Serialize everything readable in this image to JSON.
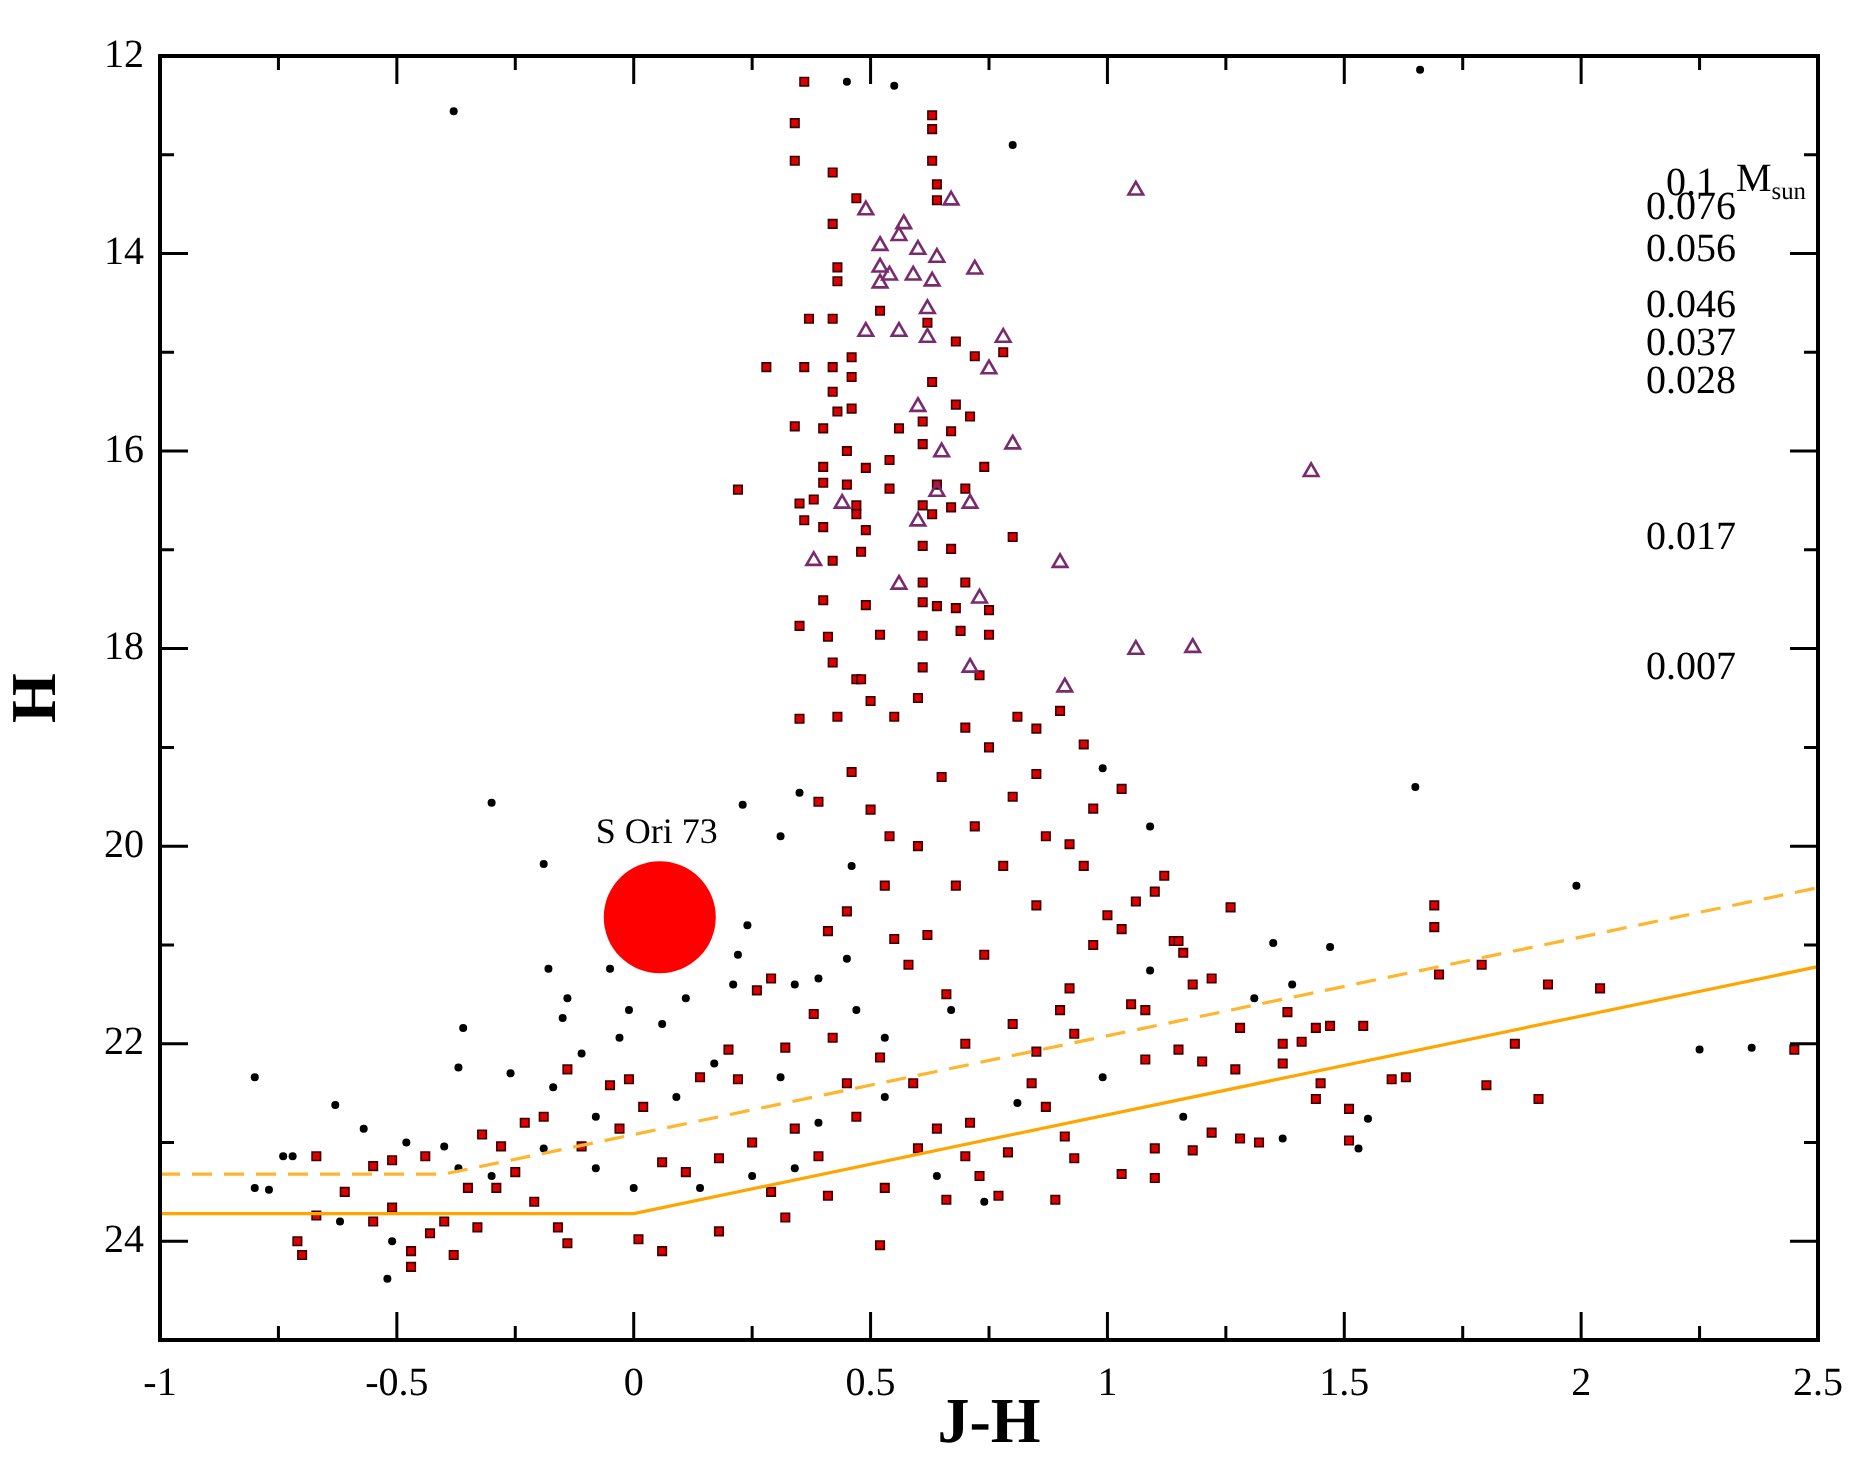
{
  "chart_data": {
    "type": "scatter",
    "xlabel": "J-H",
    "ylabel": "H",
    "xlim": [
      -1,
      2.5
    ],
    "ylim": [
      25,
      12
    ],
    "xticks": [
      -1,
      -0.5,
      0,
      0.5,
      1,
      1.5,
      2,
      2.5
    ],
    "yticks": [
      12,
      14,
      16,
      18,
      20,
      22,
      24
    ],
    "grid": false,
    "legend": false,
    "annotations": [
      "0.1",
      "M$_{sun}$",
      "0.076",
      "0.056",
      "0.046",
      "0.037",
      "0.028",
      "0.017",
      "0.007",
      {
        "text": "S Ori 73",
        "x": 0.055,
        "y": 20.72
      }
    ],
    "series": [
      {
        "type": "scatter",
        "marker": "circle",
        "color": "#000000",
        "x": [
          -0.8,
          -0.3,
          -0.19,
          0.23,
          -0.18,
          -0.05,
          -0.14,
          -0.15,
          -0.36,
          -0.63,
          -0.37,
          -0.26,
          -0.17,
          -0.11,
          -0.03,
          -0.01,
          0.06,
          0.11,
          0.21,
          0.22,
          0.24,
          0.31,
          0.35,
          0.46,
          0.34,
          0.39,
          0.45,
          0.47,
          0.17,
          0.09,
          -0.08,
          -0.19,
          -0.4,
          -0.48,
          -0.57,
          -0.72,
          -0.74,
          -0.8,
          -0.77,
          -0.52,
          -0.51,
          -0.62,
          -0.37,
          -0.3,
          -0.08,
          0,
          0.14,
          0.25,
          0.34,
          0.39,
          0.53,
          0.64,
          0.31,
          0.53,
          0.67,
          1.65,
          1.99,
          2.25,
          1.35,
          1.47,
          1.55,
          1.53,
          1.37,
          1.31,
          1.39,
          1.09,
          0.99,
          1.09,
          1.16,
          0.99,
          0.81,
          0.74,
          -0.38,
          0.8,
          0.45,
          0.55,
          1.66,
          2.36
        ],
        "values": [
          22.34,
          19.56,
          20.18,
          19.58,
          21.24,
          21.24,
          21.54,
          21.74,
          21.84,
          22.62,
          22.24,
          22.3,
          22.44,
          22.1,
          21.94,
          21.66,
          21.8,
          21.54,
          21.4,
          21.1,
          20.8,
          19.9,
          19.46,
          20.2,
          21.4,
          21.34,
          21.14,
          21.66,
          22.2,
          22.54,
          22.74,
          23.06,
          23.04,
          23,
          22.86,
          23.14,
          23.14,
          23.46,
          23.48,
          24.38,
          24,
          23.8,
          23.26,
          23.34,
          23.26,
          23.46,
          23.46,
          23.34,
          23.26,
          22.8,
          22.54,
          23.34,
          22.34,
          21.94,
          21.66,
          19.4,
          20.4,
          22.06,
          20.98,
          21.02,
          22.76,
          23.06,
          22.96,
          21.54,
          21.4,
          19.8,
          19.21,
          21.26,
          22.74,
          22.34,
          22.6,
          23.6,
          12.56,
          12.9,
          12.26,
          12.3,
          12.14,
          22.04
        ]
      },
      {
        "type": "scatter",
        "marker": "square",
        "color": "#dd0000",
        "x": [
          0.36,
          0.63,
          0.34,
          0.63,
          0.34,
          0.63,
          0.42,
          0.64,
          0.47,
          0.64,
          0.42,
          0.43,
          0.43,
          0.37,
          0.42,
          0.52,
          0.62,
          0.68,
          0.72,
          0.78,
          0.28,
          0.36,
          0.42,
          0.46,
          0.46,
          0.63,
          0.42,
          0.43,
          0.46,
          0.68,
          0.71,
          0.34,
          0.4,
          0.56,
          0.61,
          0.67,
          0.61,
          0.45,
          0.54,
          0.4,
          0.49,
          0.74,
          0.22,
          0.4,
          0.45,
          0.54,
          0.64,
          0.7,
          0.35,
          0.38,
          0.47,
          0.61,
          0.67,
          0.47,
          0.36,
          0.4,
          0.63,
          0.49,
          0.61,
          0.67,
          0.8,
          0.42,
          0.48,
          0.61,
          0.7,
          0.4,
          0.49,
          0.61,
          0.64,
          0.68,
          0.75,
          0.35,
          0.41,
          0.52,
          0.61,
          0.69,
          0.75,
          0.42,
          0.47,
          0.61,
          0.73,
          0.48,
          0.5,
          0.35,
          0.43,
          0.55,
          0.46,
          0.39,
          0.5,
          0.54,
          0.53,
          0.45,
          0.41,
          0.55,
          0.29,
          0.26,
          0.38,
          0.32,
          0.2,
          0.42,
          0.52,
          -0.01,
          -0.14,
          -0.05,
          0.14,
          0.22,
          0.45,
          0.59,
          -0.32,
          -0.28,
          -0.23,
          -0.19,
          -0.11,
          -0.03,
          0.02,
          0.06,
          0.11,
          0.18,
          0.25,
          0.34,
          0.39,
          0.47,
          0.6,
          0.53,
          0.41,
          0.32,
          0.18,
          0.06,
          0.01,
          -0.14,
          -0.16,
          -0.21,
          -0.29,
          -0.33,
          -0.38,
          -0.4,
          -0.43,
          -0.47,
          -0.47,
          -0.51,
          -0.55,
          -0.61,
          -0.67,
          -0.7,
          -0.71,
          -0.67,
          -0.55,
          -0.51,
          -0.44,
          -0.35,
          -0.25,
          0.29,
          0.66,
          0.52,
          0.64,
          0.71,
          1.03,
          1.26,
          1.69,
          1.69,
          1.7,
          1.79,
          1.93,
          2.04,
          2.45,
          1.86,
          1.91,
          1.8,
          1.63,
          1.6,
          1.54,
          1.47,
          1.44,
          1.45,
          1.51,
          1.51,
          1.44,
          1.41,
          1.37,
          1.37,
          1.27,
          1.28,
          1.38,
          1.32,
          1.28,
          1.22,
          1.18,
          1.1,
          1.03,
          0.89,
          1.1,
          1.08,
          1.15,
          1.2,
          1.08,
          1.05,
          1.18,
          1.22,
          1.14,
          1.15,
          1.16,
          1.12,
          1.1,
          1.06,
          1.03,
          1,
          0.97,
          0.95,
          0.9,
          0.81,
          0.85,
          0.85,
          0.87,
          0.92,
          0.95,
          0.97,
          0.92,
          0.9,
          0.93,
          0.85,
          0.84,
          0.87,
          0.91,
          0.93,
          0.79,
          0.77,
          0.73,
          0.7,
          0.6,
          0.7,
          0.75,
          0.65,
          0.8,
          0.72,
          0.6,
          0.78,
          0.68,
          0.85,
          0.62,
          0.74,
          0.66,
          0.8,
          0.58,
          0.7
        ],
        "values": [
          12.26,
          12.6,
          12.68,
          12.74,
          13.06,
          13.06,
          13.18,
          13.3,
          13.44,
          13.46,
          13.7,
          14.14,
          14.28,
          14.66,
          14.66,
          14.58,
          14.7,
          14.89,
          15.04,
          15,
          15.15,
          15.15,
          15.15,
          15.05,
          15.25,
          15.3,
          15.4,
          15.6,
          15.57,
          15.53,
          15.65,
          15.75,
          15.77,
          15.77,
          15.7,
          15.8,
          15.93,
          16,
          16.09,
          16.16,
          16.17,
          16.16,
          16.39,
          16.32,
          16.34,
          16.38,
          16.34,
          16.38,
          16.53,
          16.49,
          16.55,
          16.55,
          16.57,
          16.64,
          16.7,
          16.77,
          16.64,
          16.8,
          16.96,
          16.99,
          16.87,
          17.11,
          17.02,
          17.33,
          17.33,
          17.51,
          17.56,
          17.53,
          17.57,
          17.59,
          17.61,
          17.77,
          17.88,
          17.86,
          17.87,
          17.82,
          17.86,
          18.14,
          18.31,
          18.19,
          18.27,
          18.31,
          18.53,
          18.71,
          18.69,
          18.69,
          19.25,
          19.55,
          19.63,
          19.9,
          20.4,
          20.66,
          20.86,
          20.94,
          21.34,
          21.46,
          21.7,
          22.04,
          22.06,
          21.94,
          22.14,
          22.36,
          22.26,
          22.42,
          22.34,
          22.36,
          22.4,
          22.4,
          22.92,
          23.04,
          22.8,
          22.74,
          23.04,
          22.86,
          22.64,
          23.2,
          23.3,
          23.16,
          23,
          22.86,
          23.14,
          22.74,
          23.06,
          23.46,
          23.54,
          23.76,
          23.9,
          24.1,
          23.98,
          24.02,
          23.86,
          23.6,
          23.46,
          23.86,
          24.14,
          23.8,
          23.92,
          24.1,
          24.26,
          23.66,
          23.8,
          23.5,
          23.74,
          24.14,
          24,
          23.14,
          23.24,
          23.18,
          23.14,
          23.46,
          23.3,
          23.5,
          23.58,
          24.04,
          22.86,
          22.8,
          19.42,
          20.62,
          20.6,
          20.82,
          21.3,
          21.2,
          21.4,
          21.44,
          22.06,
          22,
          22.56,
          22.42,
          22.34,
          22.36,
          21.82,
          21.82,
          21.84,
          22.4,
          22.66,
          22.98,
          22.56,
          21.98,
          22,
          22.2,
          22.26,
          21.84,
          21.68,
          23,
          22.96,
          22.9,
          23.08,
          23.36,
          23.32,
          23.58,
          23.06,
          22.16,
          22.06,
          22.18,
          21.66,
          21.6,
          21.4,
          21.34,
          20.96,
          20.96,
          21.08,
          20.3,
          20.46,
          20.56,
          20.84,
          20.7,
          19.62,
          18.97,
          18.63,
          18.69,
          18.81,
          19.27,
          19.9,
          19.98,
          20.2,
          21,
          21.44,
          21.66,
          21.9,
          22.08,
          22.4,
          22.64,
          22.94,
          23.16,
          23.1,
          23.54,
          23.34,
          23.14,
          18.5,
          18.8,
          19,
          19.3,
          19.5,
          19.8,
          20,
          20.2,
          20.4,
          20.6,
          20.9,
          21.1,
          21.5,
          21.8,
          21.2,
          22
        ]
      },
      {
        "type": "scatter",
        "marker": "triangle",
        "color": "#7a2a6e",
        "x": [
          1.06,
          0.49,
          0.67,
          0.57,
          0.56,
          0.52,
          0.6,
          0.64,
          0.52,
          0.54,
          0.59,
          0.72,
          0.63,
          0.52,
          0.62,
          0.49,
          0.56,
          0.62,
          0.78,
          0.75,
          0.6,
          0.8,
          0.65,
          0.44,
          0.64,
          0.71,
          0.6,
          0.38,
          0.9,
          0.56,
          0.73,
          1.06,
          0.71,
          1.43,
          1.18,
          0.91
        ],
        "values": [
          13.36,
          13.56,
          13.46,
          13.7,
          13.82,
          13.92,
          13.96,
          14.04,
          14.14,
          14.22,
          14.22,
          14.16,
          14.28,
          14.3,
          14.56,
          14.79,
          14.79,
          14.85,
          14.85,
          15.17,
          15.55,
          15.93,
          16.01,
          16.53,
          16.41,
          16.53,
          16.71,
          17.11,
          17.13,
          17.35,
          17.49,
          18.01,
          18.19,
          16.21,
          17.99,
          18.39
        ]
      },
      {
        "type": "line",
        "marker": "none",
        "line_style": "dashed",
        "color": "#ffb52e",
        "x": [
          -1,
          -0.4,
          2.5
        ],
        "values": [
          23.32,
          23.32,
          20.42
        ]
      },
      {
        "type": "line",
        "marker": "none",
        "line_style": "solid",
        "color": "#ffa500",
        "x": [
          -1,
          0,
          2.5
        ],
        "values": [
          23.72,
          23.72,
          21.22
        ]
      },
      {
        "type": "bubble",
        "color": "#ff0000",
        "x": [
          0.055
        ],
        "values": [
          20.72
        ],
        "sizes": [
          1
        ]
      }
    ]
  }
}
